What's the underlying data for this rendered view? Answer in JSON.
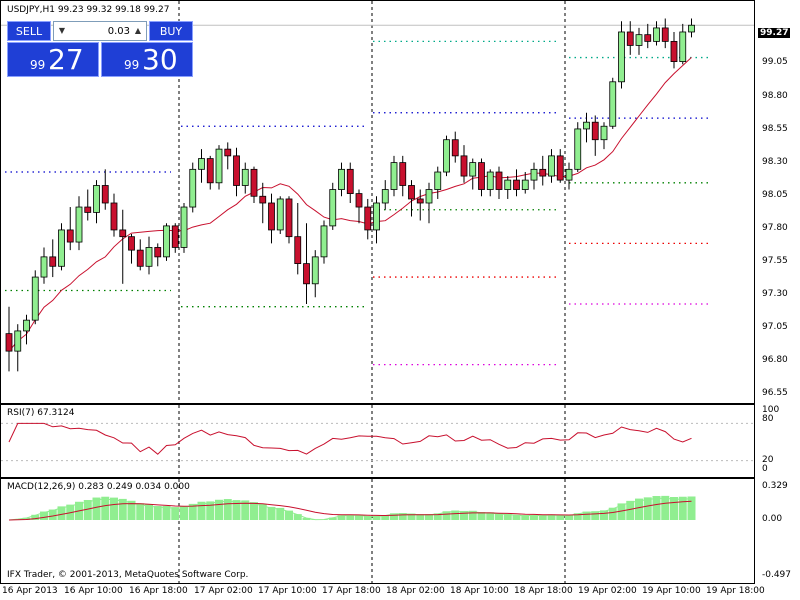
{
  "chart": {
    "symbol_header": "USDJPY,H1  99.23 99.32 99.18 99.27",
    "current_price": "99.27",
    "copyright": "IFX Trader, © 2001-2013, MetaQuotes Software Corp."
  },
  "one_click": {
    "sell_label": "SELL",
    "buy_label": "BUY",
    "lot": "0.03",
    "sell_small": "99",
    "sell_big": "27",
    "buy_small": "99",
    "buy_big": "30",
    "colors": {
      "button": "#1f3fd6"
    }
  },
  "indicators": {
    "rsi_label": "RSI(7) 67.3124",
    "macd_label": "MACD(12,26,9) 0.283 0.249 0.034 0.000"
  },
  "price_axis": [
    "99.05",
    "98.80",
    "98.55",
    "98.30",
    "98.05",
    "97.80",
    "97.55",
    "97.30",
    "97.05",
    "96.80",
    "96.55"
  ],
  "rsi_axis": [
    "100",
    "80",
    "20",
    "0"
  ],
  "macd_axis": [
    "0.329",
    "0.00",
    "-0.497"
  ],
  "time_axis": [
    "16 Apr 2013",
    "16 Apr 10:00",
    "16 Apr 18:00",
    "17 Apr 02:00",
    "17 Apr 10:00",
    "17 Apr 18:00",
    "18 Apr 02:00",
    "18 Apr 10:00",
    "18 Apr 18:00",
    "19 Apr 02:00",
    "19 Apr 10:00",
    "19 Apr 18:00"
  ],
  "chart_data": {
    "type": "candlestick",
    "series_name": "USDJPY,H1",
    "ylim": [
      96.45,
      99.45
    ],
    "candles": [
      [
        96.98,
        97.18,
        96.7,
        96.85
      ],
      [
        96.85,
        97.05,
        96.7,
        97.0
      ],
      [
        97.0,
        97.12,
        96.9,
        97.08
      ],
      [
        97.08,
        97.45,
        97.05,
        97.4
      ],
      [
        97.4,
        97.62,
        97.35,
        97.55
      ],
      [
        97.55,
        97.68,
        97.4,
        97.48
      ],
      [
        97.48,
        97.8,
        97.45,
        97.75
      ],
      [
        97.75,
        97.92,
        97.6,
        97.66
      ],
      [
        97.66,
        98.0,
        97.6,
        97.92
      ],
      [
        97.92,
        98.05,
        97.82,
        97.88
      ],
      [
        97.88,
        98.12,
        97.8,
        98.08
      ],
      [
        98.08,
        98.2,
        97.9,
        97.95
      ],
      [
        97.95,
        98.02,
        97.7,
        97.75
      ],
      [
        97.75,
        97.9,
        97.35,
        97.7
      ],
      [
        97.7,
        97.72,
        97.5,
        97.6
      ],
      [
        97.6,
        97.68,
        97.45,
        97.48
      ],
      [
        97.48,
        97.7,
        97.42,
        97.62
      ],
      [
        97.62,
        97.65,
        97.48,
        97.55
      ],
      [
        97.55,
        97.8,
        97.52,
        97.78
      ],
      [
        97.78,
        97.8,
        97.58,
        97.62
      ],
      [
        97.62,
        97.95,
        97.58,
        97.92
      ],
      [
        97.92,
        98.25,
        97.88,
        98.2
      ],
      [
        98.2,
        98.35,
        98.1,
        98.28
      ],
      [
        98.28,
        98.3,
        98.05,
        98.1
      ],
      [
        98.1,
        98.38,
        98.05,
        98.35
      ],
      [
        98.35,
        98.4,
        98.2,
        98.3
      ],
      [
        98.3,
        98.36,
        98.0,
        98.08
      ],
      [
        98.08,
        98.25,
        98.02,
        98.2
      ],
      [
        98.2,
        98.22,
        97.95,
        98.0
      ],
      [
        98.0,
        98.1,
        97.8,
        97.95
      ],
      [
        97.95,
        98.02,
        97.65,
        97.75
      ],
      [
        97.75,
        98.0,
        97.72,
        97.98
      ],
      [
        97.98,
        98.0,
        97.65,
        97.7
      ],
      [
        97.7,
        97.95,
        97.42,
        97.5
      ],
      [
        97.5,
        97.8,
        97.2,
        97.35
      ],
      [
        97.35,
        97.6,
        97.25,
        97.55
      ],
      [
        97.55,
        97.82,
        97.5,
        97.78
      ],
      [
        97.78,
        98.1,
        97.75,
        98.05
      ],
      [
        98.05,
        98.25,
        98.0,
        98.2
      ],
      [
        98.2,
        98.25,
        97.95,
        98.02
      ],
      [
        98.02,
        98.05,
        97.8,
        97.92
      ],
      [
        97.92,
        97.98,
        97.68,
        97.75
      ],
      [
        97.75,
        98.0,
        97.65,
        97.95
      ],
      [
        97.95,
        98.12,
        97.9,
        98.05
      ],
      [
        98.05,
        98.3,
        98.0,
        98.25
      ],
      [
        98.25,
        98.3,
        98.0,
        98.08
      ],
      [
        98.08,
        98.12,
        97.85,
        97.98
      ],
      [
        97.98,
        98.05,
        97.82,
        97.95
      ],
      [
        97.95,
        98.1,
        97.8,
        98.05
      ],
      [
        98.05,
        98.22,
        97.98,
        98.18
      ],
      [
        98.18,
        98.45,
        98.15,
        98.42
      ],
      [
        98.42,
        98.48,
        98.25,
        98.3
      ],
      [
        98.3,
        98.38,
        98.1,
        98.15
      ],
      [
        98.15,
        98.28,
        98.05,
        98.25
      ],
      [
        98.25,
        98.28,
        98.0,
        98.05
      ],
      [
        98.05,
        98.2,
        98.0,
        98.18
      ],
      [
        98.18,
        98.22,
        97.98,
        98.05
      ],
      [
        98.05,
        98.15,
        97.98,
        98.12
      ],
      [
        98.12,
        98.2,
        98.0,
        98.05
      ],
      [
        98.05,
        98.18,
        98.02,
        98.12
      ],
      [
        98.12,
        98.25,
        98.05,
        98.2
      ],
      [
        98.2,
        98.3,
        98.08,
        98.15
      ],
      [
        98.15,
        98.35,
        98.1,
        98.3
      ],
      [
        98.3,
        98.35,
        98.1,
        98.12
      ],
      [
        98.12,
        98.25,
        98.05,
        98.2
      ],
      [
        98.2,
        98.55,
        98.18,
        98.5
      ],
      [
        98.5,
        98.62,
        98.4,
        98.55
      ],
      [
        98.55,
        98.6,
        98.3,
        98.42
      ],
      [
        98.42,
        98.55,
        98.35,
        98.52
      ],
      [
        98.52,
        98.88,
        98.5,
        98.85
      ],
      [
        98.85,
        99.3,
        98.8,
        99.22
      ],
      [
        99.22,
        99.3,
        99.05,
        99.12
      ],
      [
        99.12,
        99.25,
        99.05,
        99.2
      ],
      [
        99.2,
        99.28,
        99.1,
        99.15
      ],
      [
        99.15,
        99.3,
        99.12,
        99.25
      ],
      [
        99.25,
        99.32,
        99.1,
        99.15
      ],
      [
        99.15,
        99.22,
        98.95,
        99.0
      ],
      [
        99.0,
        99.28,
        98.98,
        99.22
      ],
      [
        99.22,
        99.32,
        99.18,
        99.27
      ]
    ],
    "levels": [
      {
        "x0": 4,
        "x1": 170,
        "price": 98.18,
        "color": "#0000cc"
      },
      {
        "x0": 4,
        "x1": 170,
        "price": 97.3,
        "color": "#008000"
      },
      {
        "x0": 180,
        "x1": 365,
        "price": 98.52,
        "color": "#0000cc"
      },
      {
        "x0": 180,
        "x1": 365,
        "price": 97.18,
        "color": "#008000"
      },
      {
        "x0": 372,
        "x1": 555,
        "price": 98.62,
        "color": "#0000cc"
      },
      {
        "x0": 372,
        "x1": 555,
        "price": 99.15,
        "color": "#00aa88"
      },
      {
        "x0": 372,
        "x1": 555,
        "price": 97.9,
        "color": "#008000"
      },
      {
        "x0": 372,
        "x1": 555,
        "price": 97.4,
        "color": "#ee0000"
      },
      {
        "x0": 372,
        "x1": 555,
        "price": 96.75,
        "color": "#dd00dd"
      },
      {
        "x0": 568,
        "x1": 710,
        "price": 98.58,
        "color": "#0000cc"
      },
      {
        "x0": 568,
        "x1": 710,
        "price": 99.03,
        "color": "#00aa88"
      },
      {
        "x0": 568,
        "x1": 710,
        "price": 98.1,
        "color": "#008000"
      },
      {
        "x0": 568,
        "x1": 710,
        "price": 97.65,
        "color": "#ee0000"
      },
      {
        "x0": 568,
        "x1": 710,
        "price": 97.2,
        "color": "#dd00dd"
      }
    ],
    "colors": {
      "bull": "#90ee90",
      "bear": "#c8102e",
      "ma": "#c8102e",
      "rsi": "#c8102e",
      "macd_signal": "#c8102e",
      "macd_line": "#90ee90"
    }
  }
}
